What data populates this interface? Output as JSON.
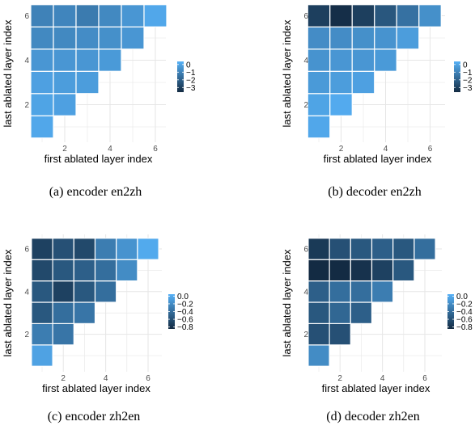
{
  "chart_data": [
    {
      "type": "heatmap",
      "caption": "(a) encoder en2zh",
      "xlabel": "first ablated layer index",
      "ylabel": "last ablated layer index",
      "xticks": [
        "2",
        "4",
        "6"
      ],
      "yticks": [
        "2",
        "4",
        "6"
      ],
      "legend_ticks": [
        "0",
        "−1",
        "−2",
        "−3"
      ],
      "value_range": [
        -3.6,
        0.4
      ],
      "grid": true,
      "legend_position": "right",
      "cells": [
        {
          "first": 1,
          "last": 1,
          "value": 0.1
        },
        {
          "first": 1,
          "last": 2,
          "value": 0.0
        },
        {
          "first": 2,
          "last": 2,
          "value": -0.1
        },
        {
          "first": 1,
          "last": 3,
          "value": -0.1
        },
        {
          "first": 2,
          "last": 3,
          "value": -0.2
        },
        {
          "first": 3,
          "last": 3,
          "value": -0.2
        },
        {
          "first": 1,
          "last": 4,
          "value": -0.4
        },
        {
          "first": 2,
          "last": 4,
          "value": -0.4
        },
        {
          "first": 3,
          "last": 4,
          "value": -0.4
        },
        {
          "first": 4,
          "last": 4,
          "value": -0.3
        },
        {
          "first": 1,
          "last": 5,
          "value": -0.8
        },
        {
          "first": 2,
          "last": 5,
          "value": -0.8
        },
        {
          "first": 3,
          "last": 5,
          "value": -0.7
        },
        {
          "first": 4,
          "last": 5,
          "value": -0.6
        },
        {
          "first": 5,
          "last": 5,
          "value": -0.4
        },
        {
          "first": 1,
          "last": 6,
          "value": -1.0
        },
        {
          "first": 2,
          "last": 6,
          "value": -0.9
        },
        {
          "first": 3,
          "last": 6,
          "value": -1.2
        },
        {
          "first": 4,
          "last": 6,
          "value": -0.8
        },
        {
          "first": 5,
          "last": 6,
          "value": -0.4
        },
        {
          "first": 6,
          "last": 6,
          "value": 0.1
        }
      ]
    },
    {
      "type": "heatmap",
      "caption": "(b) decoder en2zh",
      "xlabel": "first ablated layer index",
      "ylabel": "last ablated layer index",
      "xticks": [
        "2",
        "4",
        "6"
      ],
      "yticks": [
        "2",
        "4",
        "6"
      ],
      "legend_ticks": [
        "0",
        "−1",
        "−2",
        "−3"
      ],
      "value_range": [
        -3.6,
        0.4
      ],
      "grid": true,
      "legend_position": "right",
      "cells": [
        {
          "first": 1,
          "last": 1,
          "value": 0.1
        },
        {
          "first": 1,
          "last": 2,
          "value": 0.0
        },
        {
          "first": 2,
          "last": 2,
          "value": 0.2
        },
        {
          "first": 1,
          "last": 3,
          "value": -0.3
        },
        {
          "first": 2,
          "last": 3,
          "value": -0.2
        },
        {
          "first": 3,
          "last": 3,
          "value": -0.1
        },
        {
          "first": 1,
          "last": 4,
          "value": -0.5
        },
        {
          "first": 2,
          "last": 4,
          "value": -0.4
        },
        {
          "first": 3,
          "last": 4,
          "value": -0.4
        },
        {
          "first": 4,
          "last": 4,
          "value": -0.3
        },
        {
          "first": 1,
          "last": 5,
          "value": -0.7
        },
        {
          "first": 2,
          "last": 5,
          "value": -0.7
        },
        {
          "first": 3,
          "last": 5,
          "value": -0.6
        },
        {
          "first": 4,
          "last": 5,
          "value": -0.5
        },
        {
          "first": 5,
          "last": 5,
          "value": -0.2
        },
        {
          "first": 1,
          "last": 6,
          "value": -3.0
        },
        {
          "first": 2,
          "last": 6,
          "value": -3.5
        },
        {
          "first": 3,
          "last": 6,
          "value": -3.0
        },
        {
          "first": 4,
          "last": 6,
          "value": -2.3
        },
        {
          "first": 5,
          "last": 6,
          "value": -1.5
        },
        {
          "first": 6,
          "last": 6,
          "value": -0.6
        }
      ]
    },
    {
      "type": "heatmap",
      "caption": "(c) encoder zh2en",
      "xlabel": "first ablated layer index",
      "ylabel": "last ablated layer index",
      "xticks": [
        "2",
        "4",
        "6"
      ],
      "yticks": [
        "2",
        "4",
        "6"
      ],
      "legend_ticks": [
        "0.0",
        "−0.2",
        "−0.4",
        "−0.6",
        "−0.8"
      ],
      "value_range": [
        -0.85,
        0.05
      ],
      "grid": true,
      "legend_position": "right",
      "cells": [
        {
          "first": 1,
          "last": 1,
          "value": -0.05
        },
        {
          "first": 1,
          "last": 2,
          "value": -0.3
        },
        {
          "first": 2,
          "last": 2,
          "value": -0.35
        },
        {
          "first": 1,
          "last": 3,
          "value": -0.55
        },
        {
          "first": 2,
          "last": 3,
          "value": -0.4
        },
        {
          "first": 3,
          "last": 3,
          "value": -0.35
        },
        {
          "first": 1,
          "last": 4,
          "value": -0.55
        },
        {
          "first": 2,
          "last": 4,
          "value": -0.7
        },
        {
          "first": 3,
          "last": 4,
          "value": -0.55
        },
        {
          "first": 4,
          "last": 4,
          "value": -0.4
        },
        {
          "first": 1,
          "last": 5,
          "value": -0.65
        },
        {
          "first": 2,
          "last": 5,
          "value": -0.55
        },
        {
          "first": 3,
          "last": 5,
          "value": -0.5
        },
        {
          "first": 4,
          "last": 5,
          "value": -0.4
        },
        {
          "first": 5,
          "last": 5,
          "value": -0.2
        },
        {
          "first": 1,
          "last": 6,
          "value": -0.7
        },
        {
          "first": 2,
          "last": 6,
          "value": -0.6
        },
        {
          "first": 3,
          "last": 6,
          "value": -0.65
        },
        {
          "first": 4,
          "last": 6,
          "value": -0.3
        },
        {
          "first": 5,
          "last": 6,
          "value": -0.15
        },
        {
          "first": 6,
          "last": 6,
          "value": 0.0
        }
      ]
    },
    {
      "type": "heatmap",
      "caption": "(d) decoder zh2en",
      "xlabel": "first ablated layer index",
      "ylabel": "last ablated layer index",
      "xticks": [
        "2",
        "4",
        "6"
      ],
      "yticks": [
        "2",
        "4",
        "6"
      ],
      "legend_ticks": [
        "0.0",
        "−0.2",
        "−0.4",
        "−0.6",
        "−0.8"
      ],
      "value_range": [
        -0.85,
        0.05
      ],
      "grid": true,
      "legend_position": "right",
      "cells": [
        {
          "first": 1,
          "last": 1,
          "value": -0.2
        },
        {
          "first": 1,
          "last": 2,
          "value": -0.6
        },
        {
          "first": 2,
          "last": 2,
          "value": -0.6
        },
        {
          "first": 1,
          "last": 3,
          "value": -0.55
        },
        {
          "first": 2,
          "last": 3,
          "value": -0.45
        },
        {
          "first": 3,
          "last": 3,
          "value": -0.5
        },
        {
          "first": 1,
          "last": 4,
          "value": -0.5
        },
        {
          "first": 2,
          "last": 4,
          "value": -0.4
        },
        {
          "first": 3,
          "last": 4,
          "value": -0.4
        },
        {
          "first": 4,
          "last": 4,
          "value": -0.3
        },
        {
          "first": 1,
          "last": 5,
          "value": -0.85
        },
        {
          "first": 2,
          "last": 5,
          "value": -0.85
        },
        {
          "first": 3,
          "last": 5,
          "value": -0.8
        },
        {
          "first": 4,
          "last": 5,
          "value": -0.7
        },
        {
          "first": 5,
          "last": 5,
          "value": -0.55
        },
        {
          "first": 1,
          "last": 6,
          "value": -0.75
        },
        {
          "first": 2,
          "last": 6,
          "value": -0.6
        },
        {
          "first": 3,
          "last": 6,
          "value": -0.55
        },
        {
          "first": 4,
          "last": 6,
          "value": -0.5
        },
        {
          "first": 5,
          "last": 6,
          "value": -0.55
        },
        {
          "first": 6,
          "last": 6,
          "value": -0.4
        }
      ]
    }
  ]
}
